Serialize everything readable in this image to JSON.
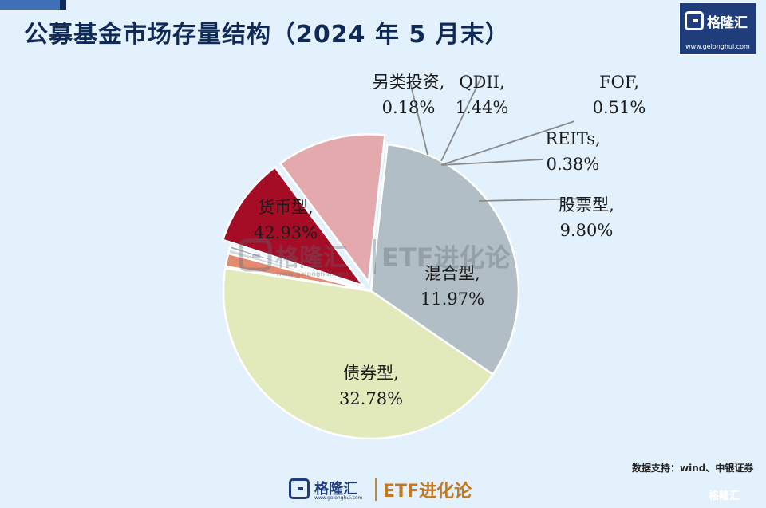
{
  "header": {
    "title": "公募基金市场存量结构（2024 年 5 月末）"
  },
  "logo": {
    "name": "格隆汇",
    "url": "www.gelonghui.com",
    "etf_name": "ETF进化论"
  },
  "source": "数据支持：wind、中银证券",
  "chart_data": {
    "type": "pie",
    "title": "公募基金市场存量结构（2024 年 5 月末）",
    "unit": "%",
    "slices": [
      {
        "name": "股票型",
        "value": 9.8,
        "label": "9.80%",
        "color": "#a50d27"
      },
      {
        "name": "混合型",
        "value": 11.97,
        "label": "11.97%",
        "color": "#e3a9ac"
      },
      {
        "name": "债券型",
        "value": 32.78,
        "label": "32.78%",
        "color": "#b2bec6"
      },
      {
        "name": "货币型",
        "value": 42.93,
        "label": "42.93%",
        "color": "#e2e9bb"
      },
      {
        "name": "另类投资",
        "value": 0.18,
        "label": "0.18%",
        "color": "#c9a37a"
      },
      {
        "name": "QDII",
        "value": 1.44,
        "label": "1.44%",
        "color": "#e38a70"
      },
      {
        "name": "FOF",
        "value": 0.51,
        "label": "0.51%",
        "color": "#d8d8d8"
      },
      {
        "name": "REITs",
        "value": 0.38,
        "label": "0.38%",
        "color": "#9fb1c8"
      }
    ]
  }
}
